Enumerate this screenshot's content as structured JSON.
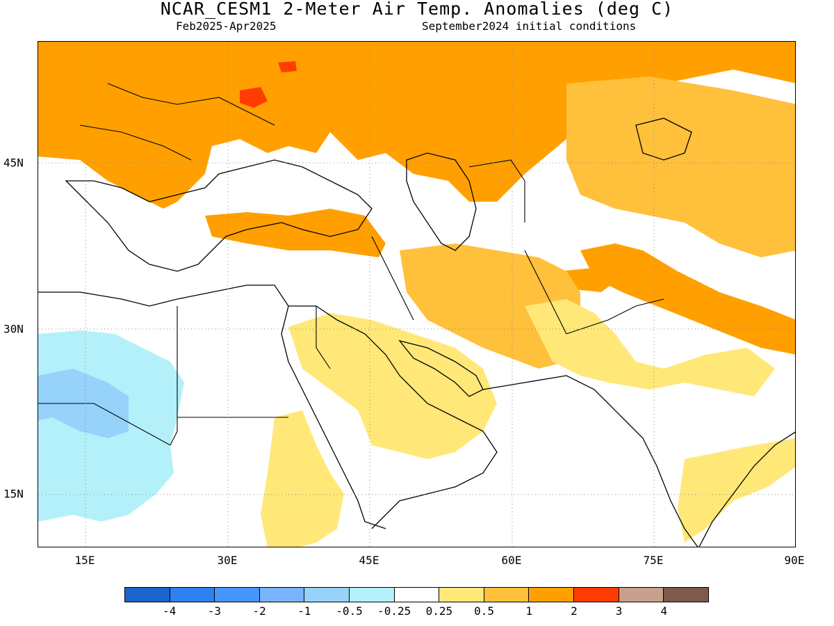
{
  "header": {
    "title": "NCAR_CESM1 2-Meter Air Temp. Anomalies (deg C)",
    "period": "Feb2025-Apr2025",
    "init": "September2024 initial conditions"
  },
  "map": {
    "lon_range": [
      10,
      90
    ],
    "lat_range": [
      9,
      55
    ],
    "lon_ticks": [
      "15E",
      "30E",
      "45E",
      "60E",
      "75E",
      "90E"
    ],
    "lat_ticks": [
      "45N",
      "30N",
      "15N"
    ],
    "gridlines": "dotted"
  },
  "legend": {
    "colors": [
      "#1964cd",
      "#2d82f0",
      "#4696ff",
      "#78b4ff",
      "#96d2fa",
      "#b4f0fa",
      "#ffffff",
      "#ffe878",
      "#ffc03c",
      "#ffa000",
      "#ff3c00",
      "#c8a08c",
      "#7d5a4b"
    ],
    "labels": [
      "-4",
      "-3",
      "-2",
      "-1",
      "-0.5",
      "-0.25",
      "0.25",
      "0.5",
      "1",
      "2",
      "3",
      "4"
    ]
  }
}
